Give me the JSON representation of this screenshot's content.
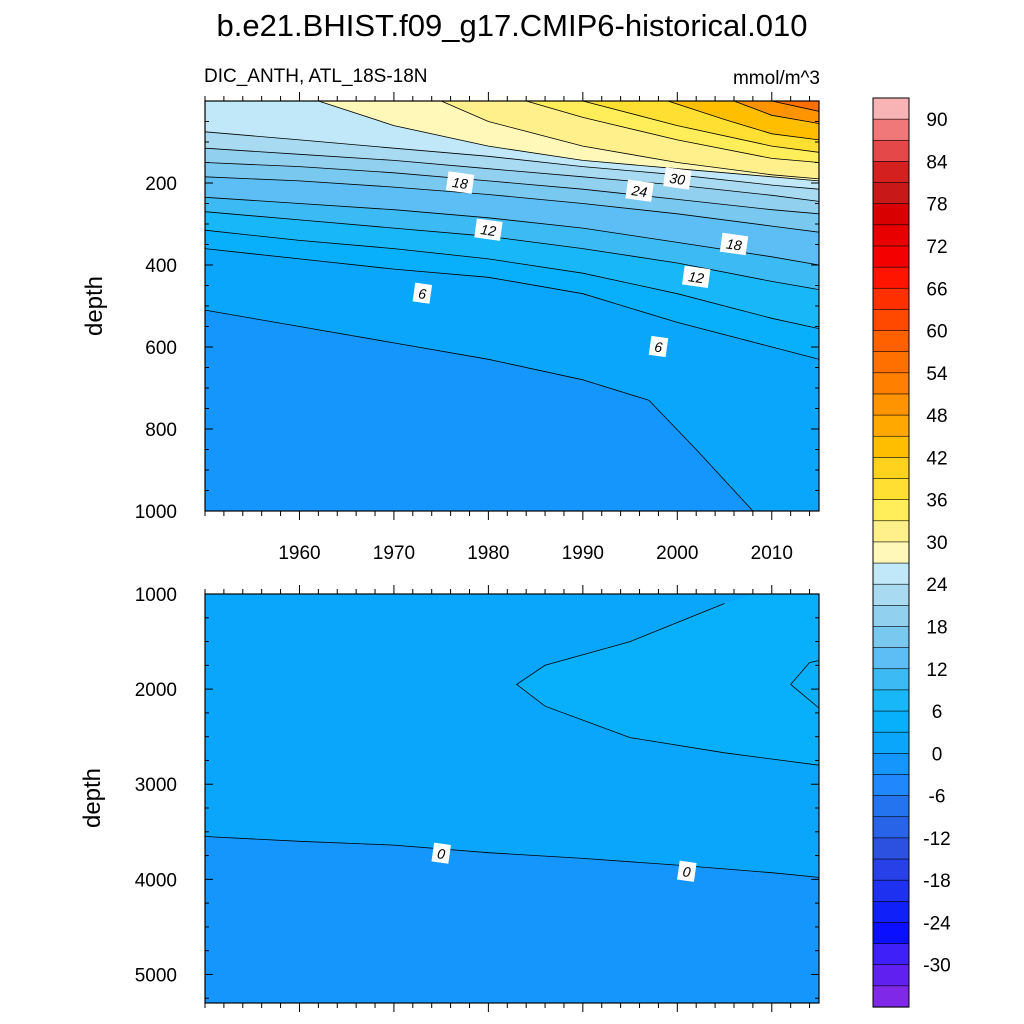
{
  "title": "b.e21.BHIST.f09_g17.CMIP6-historical.010",
  "subtitle_left": "DIC_ANTH, ATL_18S-18N",
  "subtitle_right": "mmol/m^3",
  "chart_data": [
    {
      "type": "contour",
      "panel": "upper",
      "ylabel": "depth",
      "xlim": [
        1950,
        2015
      ],
      "ylim": [
        1000,
        0
      ],
      "y_reversed": true,
      "x_ticks": [
        1960,
        1970,
        1980,
        1990,
        2000,
        2010
      ],
      "y_ticks": [
        200,
        400,
        600,
        800,
        1000
      ],
      "contour_interval": 3,
      "contours": [
        {
          "level": 0,
          "points": [
            [
              1950,
              510
            ],
            [
              1960,
              550
            ],
            [
              1970,
              590
            ],
            [
              1980,
              630
            ],
            [
              1990,
              680
            ],
            [
              1997,
              730
            ],
            [
              2002,
              850
            ],
            [
              2008,
              1000
            ]
          ]
        },
        {
          "level": 3,
          "points": [
            [
              1950,
              360
            ],
            [
              1960,
              385
            ],
            [
              1970,
              410
            ],
            [
              1980,
              430
            ],
            [
              1990,
              470
            ],
            [
              2000,
              540
            ],
            [
              2010,
              600
            ],
            [
              2015,
              630
            ]
          ]
        },
        {
          "level": 6,
          "points": [
            [
              1950,
              315
            ],
            [
              1960,
              340
            ],
            [
              1970,
              360
            ],
            [
              1980,
              385
            ],
            [
              1990,
              420
            ],
            [
              2000,
              470
            ],
            [
              2010,
              530
            ],
            [
              2015,
              555
            ]
          ]
        },
        {
          "level": 9,
          "points": [
            [
              1950,
              270
            ],
            [
              1960,
              290
            ],
            [
              1970,
              310
            ],
            [
              1980,
              330
            ],
            [
              1990,
              360
            ],
            [
              2000,
              395
            ],
            [
              2010,
              440
            ],
            [
              2015,
              460
            ]
          ]
        },
        {
          "level": 12,
          "points": [
            [
              1950,
              235
            ],
            [
              1960,
              250
            ],
            [
              1970,
              265
            ],
            [
              1980,
              285
            ],
            [
              1990,
              310
            ],
            [
              2000,
              345
            ],
            [
              2010,
              380
            ],
            [
              2015,
              400
            ]
          ]
        },
        {
          "level": 15,
          "points": [
            [
              1950,
              185
            ],
            [
              1960,
              195
            ],
            [
              1970,
              210
            ],
            [
              1980,
              228
            ],
            [
              1990,
              250
            ],
            [
              2000,
              275
            ],
            [
              2010,
              305
            ],
            [
              2015,
              320
            ]
          ]
        },
        {
          "level": 18,
          "points": [
            [
              1950,
              150
            ],
            [
              1960,
              160
            ],
            [
              1970,
              175
            ],
            [
              1980,
              195
            ],
            [
              1990,
              215
            ],
            [
              2000,
              240
            ],
            [
              2010,
              265
            ],
            [
              2015,
              275
            ]
          ]
        },
        {
          "level": 21,
          "points": [
            [
              1950,
              115
            ],
            [
              1960,
              130
            ],
            [
              1970,
              145
            ],
            [
              1980,
              165
            ],
            [
              1990,
              185
            ],
            [
              2000,
              205
            ],
            [
              2010,
              230
            ],
            [
              2015,
              245
            ]
          ]
        },
        {
          "level": 24,
          "points": [
            [
              1950,
              75
            ],
            [
              1960,
              95
            ],
            [
              1970,
              115
            ],
            [
              1980,
              135
            ],
            [
              1990,
              160
            ],
            [
              2000,
              180
            ],
            [
              2010,
              205
            ],
            [
              2015,
              215
            ]
          ]
        },
        {
          "level": 27,
          "points": [
            [
              1962,
              0
            ],
            [
              1970,
              60
            ],
            [
              1980,
              110
            ],
            [
              1990,
              145
            ],
            [
              2000,
              165
            ],
            [
              2010,
              185
            ],
            [
              2015,
              195
            ]
          ]
        },
        {
          "level": 30,
          "points": [
            [
              1975,
              0
            ],
            [
              1980,
              50
            ],
            [
              1990,
              110
            ],
            [
              2000,
              150
            ],
            [
              2010,
              180
            ],
            [
              2015,
              190
            ]
          ]
        },
        {
          "level": 33,
          "points": [
            [
              1984,
              0
            ],
            [
              1990,
              40
            ],
            [
              2000,
              95
            ],
            [
              2010,
              140
            ],
            [
              2015,
              150
            ]
          ]
        },
        {
          "level": 36,
          "points": [
            [
              1990,
              0
            ],
            [
              2000,
              60
            ],
            [
              2010,
              110
            ],
            [
              2015,
              125
            ]
          ]
        },
        {
          "level": 42,
          "points": [
            [
              1999,
              0
            ],
            [
              2005,
              45
            ],
            [
              2010,
              80
            ],
            [
              2015,
              95
            ]
          ]
        },
        {
          "level": 48,
          "points": [
            [
              2006,
              0
            ],
            [
              2010,
              35
            ],
            [
              2015,
              55
            ]
          ]
        },
        {
          "level": 54,
          "points": [
            [
              2010,
              0
            ],
            [
              2015,
              25
            ]
          ]
        }
      ],
      "contour_labels": [
        {
          "text": "18",
          "x": 1977,
          "y": 200
        },
        {
          "text": "24",
          "x": 1996,
          "y": 220
        },
        {
          "text": "30",
          "x": 2000,
          "y": 190
        },
        {
          "text": "12",
          "x": 1980,
          "y": 315
        },
        {
          "text": "18",
          "x": 2006,
          "y": 350
        },
        {
          "text": "12",
          "x": 2002,
          "y": 430
        },
        {
          "text": "6",
          "x": 1973,
          "y": 470
        },
        {
          "text": "6",
          "x": 1998,
          "y": 600
        }
      ]
    },
    {
      "type": "contour",
      "panel": "lower",
      "ylabel": "depth",
      "xlim": [
        1950,
        2015
      ],
      "ylim": [
        5300,
        1000
      ],
      "y_reversed": true,
      "x_ticks": [
        1960,
        1970,
        1980,
        1990,
        2000,
        2010
      ],
      "y_ticks": [
        1000,
        2000,
        3000,
        4000,
        5000
      ],
      "fill_level": 0,
      "regions": [
        {
          "level": 3,
          "points": [
            [
              2008,
              1000
            ],
            [
              2015,
              1000
            ],
            [
              2015,
              2800
            ],
            [
              2005,
              2670
            ],
            [
              1995,
              2510
            ],
            [
              1986,
              2180
            ],
            [
              1983,
              1950
            ],
            [
              1986,
              1750
            ],
            [
              1995,
              1500
            ],
            [
              2000,
              1300
            ],
            [
              2005,
              1100
            ]
          ]
        },
        {
          "level": 3,
          "points": [
            [
              2015,
              1700
            ],
            [
              2014,
              1720
            ],
            [
              2012,
              1950
            ],
            [
              2015,
              2200
            ]
          ]
        },
        {
          "level": -3,
          "points": [
            [
              1950,
              3550
            ],
            [
              1960,
              3600
            ],
            [
              1970,
              3640
            ],
            [
              1980,
              3720
            ],
            [
              1990,
              3780
            ],
            [
              2000,
              3850
            ],
            [
              2010,
              3930
            ],
            [
              2015,
              3980
            ],
            [
              2015,
              5300
            ],
            [
              1950,
              5300
            ]
          ]
        }
      ],
      "contour_labels": [
        {
          "text": "0",
          "x": 1975,
          "y": 3730
        },
        {
          "text": "0",
          "x": 2001,
          "y": 3920
        }
      ]
    }
  ],
  "colorbar": {
    "label_values": [
      "90",
      "84",
      "78",
      "72",
      "66",
      "60",
      "54",
      "48",
      "42",
      "36",
      "30",
      "24",
      "18",
      "12",
      "6",
      "0",
      "-6",
      "-12",
      "-18",
      "-24",
      "-30"
    ],
    "levels_top_to_bottom": [
      93,
      90,
      87,
      84,
      81,
      78,
      75,
      72,
      69,
      66,
      63,
      60,
      57,
      54,
      51,
      48,
      45,
      42,
      39,
      36,
      33,
      30,
      27,
      24,
      21,
      18,
      15,
      12,
      9,
      6,
      3,
      0,
      -3,
      -6,
      -9,
      -12,
      -15,
      -18,
      -21,
      -24,
      -27,
      -30,
      -33
    ],
    "colors_top_to_bottom": [
      "#f8b4b4",
      "#f07878",
      "#e54848",
      "#d52020",
      "#c81818",
      "#d80000",
      "#e80000",
      "#f40000",
      "#ff1400",
      "#ff3000",
      "#ff4800",
      "#ff6000",
      "#ff7000",
      "#ff8000",
      "#ff9400",
      "#ffa800",
      "#ffbe00",
      "#ffd21e",
      "#ffe032",
      "#ffee5a",
      "#fff08c",
      "#fff8b8",
      "#c0e8f8",
      "#a8daf2",
      "#92d0f0",
      "#78c8f0",
      "#5cbef4",
      "#3cbaf4",
      "#18b8f8",
      "#08b0fc",
      "#0aa6fc",
      "#1496fc",
      "#2088fc",
      "#2474f0",
      "#2864e8",
      "#2c50e0",
      "#2840e8",
      "#1e30f0",
      "#1020f8",
      "#0a10ff",
      "#4020f8",
      "#6020f0",
      "#8028e8"
    ]
  }
}
